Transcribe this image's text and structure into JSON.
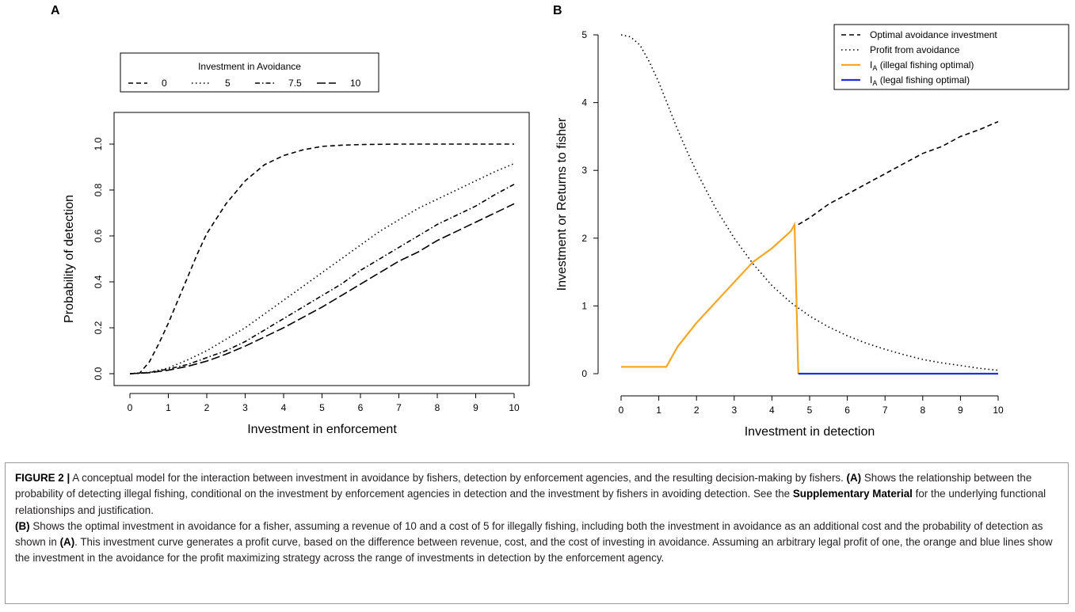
{
  "figure": {
    "label": "FIGURE 2 |",
    "caption": [
      {
        "t": " A conceptual model for the interaction between investment in avoidance by fishers, detection by enforcement agencies, and the resulting decision-making by fishers. "
      },
      {
        "t": "(A)",
        "b": true
      },
      {
        "t": " Shows the relationship between the probability of detecting illegal fishing, conditional on the investment by enforcement agencies in detection and the investment by fishers in avoiding detection. See the "
      },
      {
        "t": "Supplementary Material",
        "b": true
      },
      {
        "t": " for the underlying functional relationships and justification."
      },
      {
        "br": true
      },
      {
        "t": "(B)",
        "b": true
      },
      {
        "t": " Shows the optimal investment in avoidance for a fisher, assuming a revenue of 10 and a cost of 5 for illegally fishing, including both the investment in avoidance as an additional cost and the probability of detection as shown in "
      },
      {
        "t": "(A)",
        "b": true
      },
      {
        "t": ". This investment curve generates a profit curve, based on the difference between revenue, cost, and the cost of investing in avoidance. Assuming an arbitrary legal profit of one, the orange and blue lines show the investment in the avoidance for the profit maximizing strategy across the range of investments in detection by the enforcement agency."
      }
    ]
  },
  "chart_data": [
    {
      "panel": "A",
      "type": "line",
      "xlabel": "Investment in enforcement",
      "ylabel": "Probability of detection",
      "xlim": [
        0,
        10
      ],
      "ylim": [
        0,
        1
      ],
      "xticks": [
        "0",
        "1",
        "2",
        "3",
        "4",
        "5",
        "6",
        "7",
        "8",
        "9",
        "10"
      ],
      "yticks": [
        "0.0",
        "0.2",
        "0.4",
        "0.6",
        "0.8",
        "1.0"
      ],
      "grid": false,
      "legend": {
        "title": "Investment in Avoidance",
        "position": "top-left"
      },
      "series": [
        {
          "name": "0",
          "dash": "dashed",
          "x": [
            0,
            0.25,
            0.5,
            0.75,
            1,
            1.25,
            1.5,
            1.75,
            2,
            2.5,
            3,
            3.5,
            4,
            4.5,
            5,
            5.5,
            6,
            7,
            8,
            9,
            10
          ],
          "y": [
            0,
            0.002,
            0.05,
            0.13,
            0.22,
            0.32,
            0.42,
            0.52,
            0.61,
            0.74,
            0.84,
            0.91,
            0.95,
            0.975,
            0.99,
            0.995,
            0.998,
            1,
            1,
            1,
            1
          ]
        },
        {
          "name": "5",
          "dash": "dotted",
          "x": [
            0,
            0.5,
            1,
            1.5,
            2,
            2.5,
            3,
            3.5,
            4,
            4.5,
            5,
            5.5,
            6,
            6.5,
            7,
            7.5,
            8,
            8.5,
            9,
            9.5,
            10
          ],
          "y": [
            0,
            0.006,
            0.025,
            0.06,
            0.1,
            0.15,
            0.2,
            0.26,
            0.32,
            0.38,
            0.44,
            0.5,
            0.56,
            0.62,
            0.67,
            0.72,
            0.76,
            0.8,
            0.84,
            0.88,
            0.915
          ]
        },
        {
          "name": "7.5",
          "dash": "dashdot",
          "x": [
            0,
            0.5,
            1,
            1.5,
            2,
            2.5,
            3,
            3.5,
            4,
            4.5,
            5,
            5.5,
            6,
            6.5,
            7,
            7.5,
            8,
            8.5,
            9,
            9.5,
            10
          ],
          "y": [
            0,
            0.005,
            0.02,
            0.04,
            0.07,
            0.1,
            0.14,
            0.19,
            0.24,
            0.29,
            0.34,
            0.39,
            0.45,
            0.5,
            0.55,
            0.6,
            0.65,
            0.69,
            0.73,
            0.78,
            0.825
          ]
        },
        {
          "name": "10",
          "dash": "longdash",
          "x": [
            0,
            0.5,
            1,
            1.5,
            2,
            2.5,
            3,
            3.5,
            4,
            4.5,
            5,
            5.5,
            6,
            6.5,
            7,
            7.5,
            8,
            8.5,
            9,
            9.5,
            10
          ],
          "y": [
            0,
            0.004,
            0.015,
            0.032,
            0.055,
            0.085,
            0.12,
            0.16,
            0.2,
            0.245,
            0.29,
            0.34,
            0.39,
            0.44,
            0.49,
            0.53,
            0.58,
            0.62,
            0.66,
            0.7,
            0.74
          ]
        }
      ]
    },
    {
      "panel": "B",
      "type": "line",
      "xlabel": "Investment in detection",
      "ylabel": "Investment or Returns to fisher",
      "xlim": [
        0,
        10
      ],
      "ylim": [
        0,
        5
      ],
      "xticks": [
        "0",
        "1",
        "2",
        "3",
        "4",
        "5",
        "6",
        "7",
        "8",
        "9",
        "10"
      ],
      "yticks": [
        "0",
        "1",
        "2",
        "3",
        "4",
        "5"
      ],
      "grid": false,
      "legend": {
        "position": "top-right"
      },
      "series": [
        {
          "name": "Optimal avoidance investment",
          "dash": "dashed",
          "color": "#000000",
          "x": [
            4.7,
            5,
            5.5,
            6,
            6.5,
            7,
            7.5,
            8,
            8.5,
            9,
            9.5,
            10
          ],
          "y": [
            2.2,
            2.3,
            2.5,
            2.65,
            2.8,
            2.95,
            3.1,
            3.25,
            3.35,
            3.5,
            3.6,
            3.72
          ]
        },
        {
          "name": "Profit from avoidance",
          "dash": "dotted",
          "color": "#000000",
          "x": [
            0,
            0.25,
            0.5,
            0.75,
            1,
            1.25,
            1.5,
            1.75,
            2,
            2.5,
            3,
            3.5,
            4,
            4.5,
            5,
            5.5,
            6,
            6.5,
            7,
            7.5,
            8,
            8.5,
            9,
            9.5,
            10
          ],
          "y": [
            5,
            4.97,
            4.85,
            4.6,
            4.3,
            3.95,
            3.6,
            3.28,
            2.98,
            2.45,
            2.0,
            1.62,
            1.3,
            1.05,
            0.85,
            0.69,
            0.56,
            0.45,
            0.36,
            0.28,
            0.21,
            0.16,
            0.12,
            0.08,
            0.05
          ]
        },
        {
          "name": "I",
          "sub": "A",
          "name_suffix": " (illegal fishing optimal)",
          "dash": "solid",
          "color": "#f5a623",
          "x": [
            0,
            1.2,
            1.5,
            2,
            2.5,
            3,
            3.5,
            4,
            4.5,
            4.6,
            4.7
          ],
          "y": [
            0.1,
            0.1,
            0.4,
            0.75,
            1.05,
            1.35,
            1.65,
            1.85,
            2.1,
            2.2,
            0
          ]
        },
        {
          "name": "I",
          "sub": "A",
          "name_suffix": " (legal fishing optimal)",
          "dash": "solid",
          "color": "#1f2fe0",
          "x": [
            4.7,
            10
          ],
          "y": [
            0,
            0
          ]
        }
      ]
    }
  ]
}
